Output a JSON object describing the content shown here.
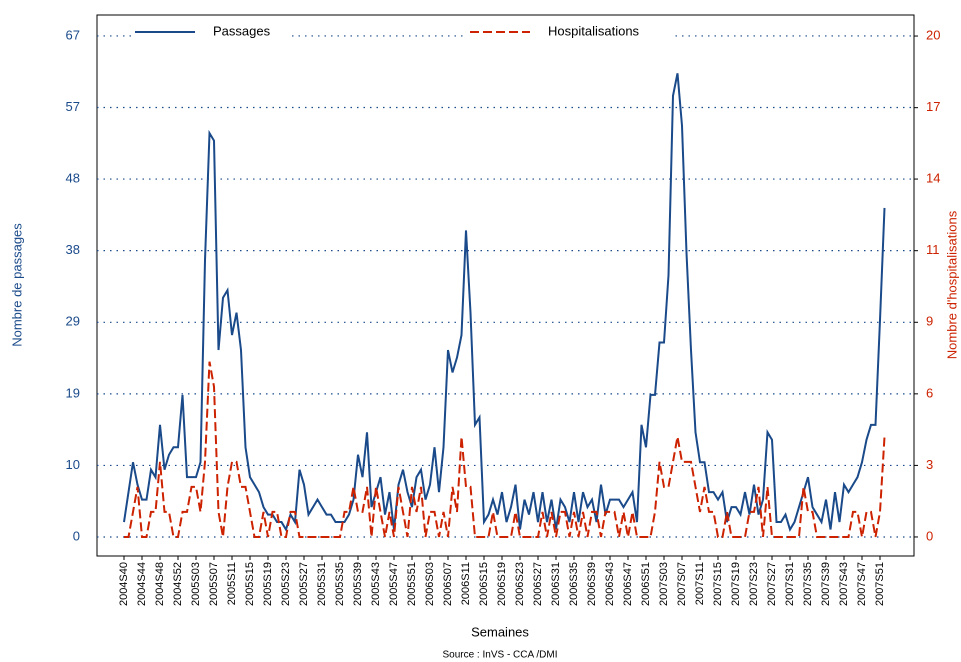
{
  "chart_data": {
    "type": "line",
    "x_label": "Semaines",
    "y_label": "Nombre de passages",
    "y2_label": "Nombre d'hospitalisations",
    "source": "Source : InVS - CCA /DMI",
    "categories": [
      "2004S40",
      null,
      null,
      null,
      "2004S44",
      null,
      null,
      null,
      "2004S48",
      null,
      null,
      null,
      "2004S52",
      null,
      null,
      null,
      "2005S03",
      null,
      null,
      null,
      "2005S07",
      null,
      null,
      null,
      "2005S11",
      null,
      null,
      null,
      "2005S15",
      null,
      null,
      null,
      "2005S19",
      null,
      null,
      null,
      "2005S23",
      null,
      null,
      null,
      "2005S27",
      null,
      null,
      null,
      "2005S31",
      null,
      null,
      null,
      "2005S35",
      null,
      null,
      null,
      "2005S39",
      null,
      null,
      null,
      "2005S43",
      null,
      null,
      null,
      "2005S47",
      null,
      null,
      null,
      "2005S51",
      null,
      null,
      null,
      "2006S03",
      null,
      null,
      null,
      "2006S07",
      null,
      null,
      null,
      "2006S11",
      null,
      null,
      null,
      "2006S15",
      null,
      null,
      null,
      "2006S19",
      null,
      null,
      null,
      "2006S23",
      null,
      null,
      null,
      "2006S27",
      null,
      null,
      null,
      "2006S31",
      null,
      null,
      null,
      "2006S35",
      null,
      null,
      null,
      "2006S39",
      null,
      null,
      null,
      "2006S43",
      null,
      null,
      null,
      "2006S47",
      null,
      null,
      null,
      "2006S51",
      null,
      null,
      null,
      "2007S03",
      null,
      null,
      null,
      "2007S07",
      null,
      null,
      null,
      "2007S11",
      null,
      null,
      null,
      "2007S15",
      null,
      null,
      null,
      "2007S19",
      null,
      null,
      null,
      "2007S23",
      null,
      null,
      null,
      "2007S27",
      null,
      null,
      null,
      "2007S31",
      null,
      null,
      null,
      "2007S35",
      null,
      null,
      null,
      "2007S39",
      null,
      null,
      null,
      "2007S43",
      null,
      null,
      null,
      "2007S47",
      null,
      null,
      null,
      "2007S51",
      null
    ],
    "series": [
      {
        "name": "Passages",
        "color": "#1a4a8a",
        "style": "solid",
        "values": [
          2,
          6,
          10,
          7,
          5,
          5,
          9,
          8,
          15,
          9,
          11,
          12,
          12,
          19,
          8,
          8,
          8,
          10,
          37,
          54,
          53,
          25,
          32,
          33,
          27,
          30,
          25,
          12,
          8,
          7,
          6,
          4,
          3,
          3,
          2,
          2,
          1,
          3,
          2,
          9,
          7,
          3,
          4,
          5,
          4,
          3,
          3,
          2,
          2,
          2,
          3,
          5,
          11,
          8,
          14,
          4,
          6,
          8,
          3,
          6,
          1,
          7,
          9,
          6,
          4,
          8,
          9,
          5,
          7,
          12,
          6,
          12,
          25,
          22,
          24,
          27,
          41,
          30,
          15,
          16,
          2,
          3,
          5,
          3,
          6,
          2,
          4,
          7,
          1,
          5,
          3,
          6,
          2,
          6,
          2,
          5,
          1,
          5,
          4,
          2,
          6,
          2,
          6,
          4,
          5,
          2,
          7,
          3,
          5,
          5,
          5,
          4,
          5,
          6,
          2,
          15,
          12,
          19,
          19,
          26,
          26,
          35,
          59,
          62,
          55,
          38,
          25,
          14,
          10,
          10,
          6,
          6,
          5,
          6,
          2,
          4,
          4,
          3,
          6,
          3,
          7,
          3,
          5,
          14,
          13,
          2,
          2,
          3,
          1,
          2,
          4,
          6,
          8,
          4,
          3,
          2,
          5,
          1,
          6,
          2,
          7,
          6,
          7,
          8,
          10,
          13,
          15,
          15,
          29,
          44
        ]
      },
      {
        "name": "Hospitalisations",
        "color": "#cc2200",
        "style": "dashed",
        "axis": "y2",
        "values": [
          0,
          0,
          1,
          2,
          0,
          0,
          1,
          1,
          3,
          1,
          1,
          0,
          0,
          1,
          1,
          2,
          2,
          1,
          3,
          7,
          6,
          1,
          0,
          2,
          3,
          3,
          2,
          2,
          1,
          0,
          0,
          1,
          0,
          1,
          1,
          0,
          0,
          1,
          1,
          0,
          0,
          0,
          0,
          0,
          0,
          0,
          0,
          0,
          0,
          1,
          1,
          2,
          1,
          1,
          2,
          0,
          2,
          1,
          0,
          1,
          0,
          2,
          1,
          0,
          2,
          1,
          2,
          0,
          1,
          1,
          0,
          1,
          0,
          2,
          1,
          4,
          2,
          2,
          0,
          0,
          0,
          0,
          1,
          0,
          0,
          0,
          0,
          1,
          0,
          0,
          0,
          0,
          0,
          1,
          0,
          1,
          0,
          1,
          1,
          0,
          1,
          0,
          1,
          0,
          1,
          1,
          0,
          1,
          1,
          1,
          0,
          1,
          0,
          1,
          0,
          0,
          0,
          0,
          1,
          3,
          2,
          2,
          3,
          4,
          3,
          3,
          3,
          2,
          1,
          2,
          1,
          1,
          0,
          0,
          1,
          0,
          0,
          0,
          0,
          1,
          1,
          2,
          0,
          2,
          0,
          0,
          0,
          0,
          0,
          0,
          0,
          2,
          1,
          1,
          0,
          0,
          0,
          0,
          0,
          0,
          0,
          0,
          1,
          1,
          0,
          1,
          1,
          0,
          1,
          4
        ]
      }
    ],
    "ylim": [
      -2.54,
      69.8
    ],
    "yticks": [
      0,
      {
        "value": 9.57,
        "label": "10"
      },
      {
        "value": 19.14,
        "label": "19"
      },
      {
        "value": 28.71,
        "label": "29"
      },
      {
        "value": 38.29,
        "label": "38"
      },
      {
        "value": 47.86,
        "label": "48"
      },
      {
        "value": 57.43,
        "label": "57"
      },
      67
    ],
    "y2lim": [
      -0.76,
      20.84
    ],
    "y2ticks": [
      0,
      {
        "value": 2.857,
        "label": "3"
      },
      {
        "value": 5.714,
        "label": "6"
      },
      {
        "value": 8.571,
        "label": "9"
      },
      {
        "value": 11.43,
        "label": "11"
      },
      {
        "value": 14.29,
        "label": "14"
      },
      {
        "value": 17.14,
        "label": "17"
      },
      20
    ],
    "grid": true,
    "legend": "top"
  }
}
